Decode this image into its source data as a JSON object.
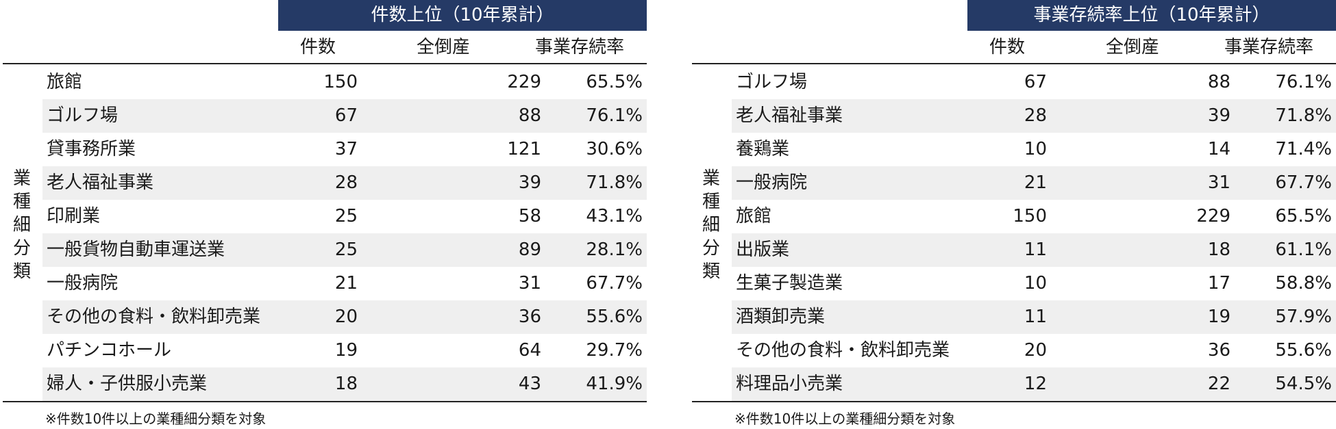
{
  "left": {
    "banner": "件数上位（10年累計）",
    "headers": {
      "count": "件数",
      "total": "全倒産",
      "rate": "事業存続率"
    },
    "category_label": [
      "業",
      "種",
      "細",
      "分",
      "類"
    ],
    "rows": [
      {
        "name": "旅館",
        "count": "150",
        "total": "229",
        "rate": "65.5%"
      },
      {
        "name": "ゴルフ場",
        "count": "67",
        "total": "88",
        "rate": "76.1%"
      },
      {
        "name": "貸事務所業",
        "count": "37",
        "total": "121",
        "rate": "30.6%"
      },
      {
        "name": "老人福祉事業",
        "count": "28",
        "total": "39",
        "rate": "71.8%"
      },
      {
        "name": "印刷業",
        "count": "25",
        "total": "58",
        "rate": "43.1%"
      },
      {
        "name": "一般貨物自動車運送業",
        "count": "25",
        "total": "89",
        "rate": "28.1%"
      },
      {
        "name": "一般病院",
        "count": "21",
        "total": "31",
        "rate": "67.7%"
      },
      {
        "name": "その他の食料・飲料卸売業",
        "count": "20",
        "total": "36",
        "rate": "55.6%"
      },
      {
        "name": "パチンコホール",
        "count": "19",
        "total": "64",
        "rate": "29.7%"
      },
      {
        "name": "婦人・子供服小売業",
        "count": "18",
        "total": "43",
        "rate": "41.9%"
      }
    ],
    "footnote": "※件数10件以上の業種細分類を対象"
  },
  "right": {
    "banner": "事業存続率上位（10年累計）",
    "headers": {
      "count": "件数",
      "total": "全倒産",
      "rate": "事業存続率"
    },
    "category_label": [
      "業",
      "種",
      "細",
      "分",
      "類"
    ],
    "rows": [
      {
        "name": "ゴルフ場",
        "count": "67",
        "total": "88",
        "rate": "76.1%"
      },
      {
        "name": "老人福祉事業",
        "count": "28",
        "total": "39",
        "rate": "71.8%"
      },
      {
        "name": "養鶏業",
        "count": "10",
        "total": "14",
        "rate": "71.4%"
      },
      {
        "name": "一般病院",
        "count": "21",
        "total": "31",
        "rate": "67.7%"
      },
      {
        "name": "旅館",
        "count": "150",
        "total": "229",
        "rate": "65.5%"
      },
      {
        "name": "出版業",
        "count": "11",
        "total": "18",
        "rate": "61.1%"
      },
      {
        "name": "生菓子製造業",
        "count": "10",
        "total": "17",
        "rate": "58.8%"
      },
      {
        "name": "酒類卸売業",
        "count": "11",
        "total": "19",
        "rate": "57.9%"
      },
      {
        "name": "その他の食料・飲料卸売業",
        "count": "20",
        "total": "36",
        "rate": "55.6%"
      },
      {
        "name": "料理品小売業",
        "count": "12",
        "total": "22",
        "rate": "54.5%"
      }
    ],
    "footnote": "※件数10件以上の業種細分類を対象"
  }
}
